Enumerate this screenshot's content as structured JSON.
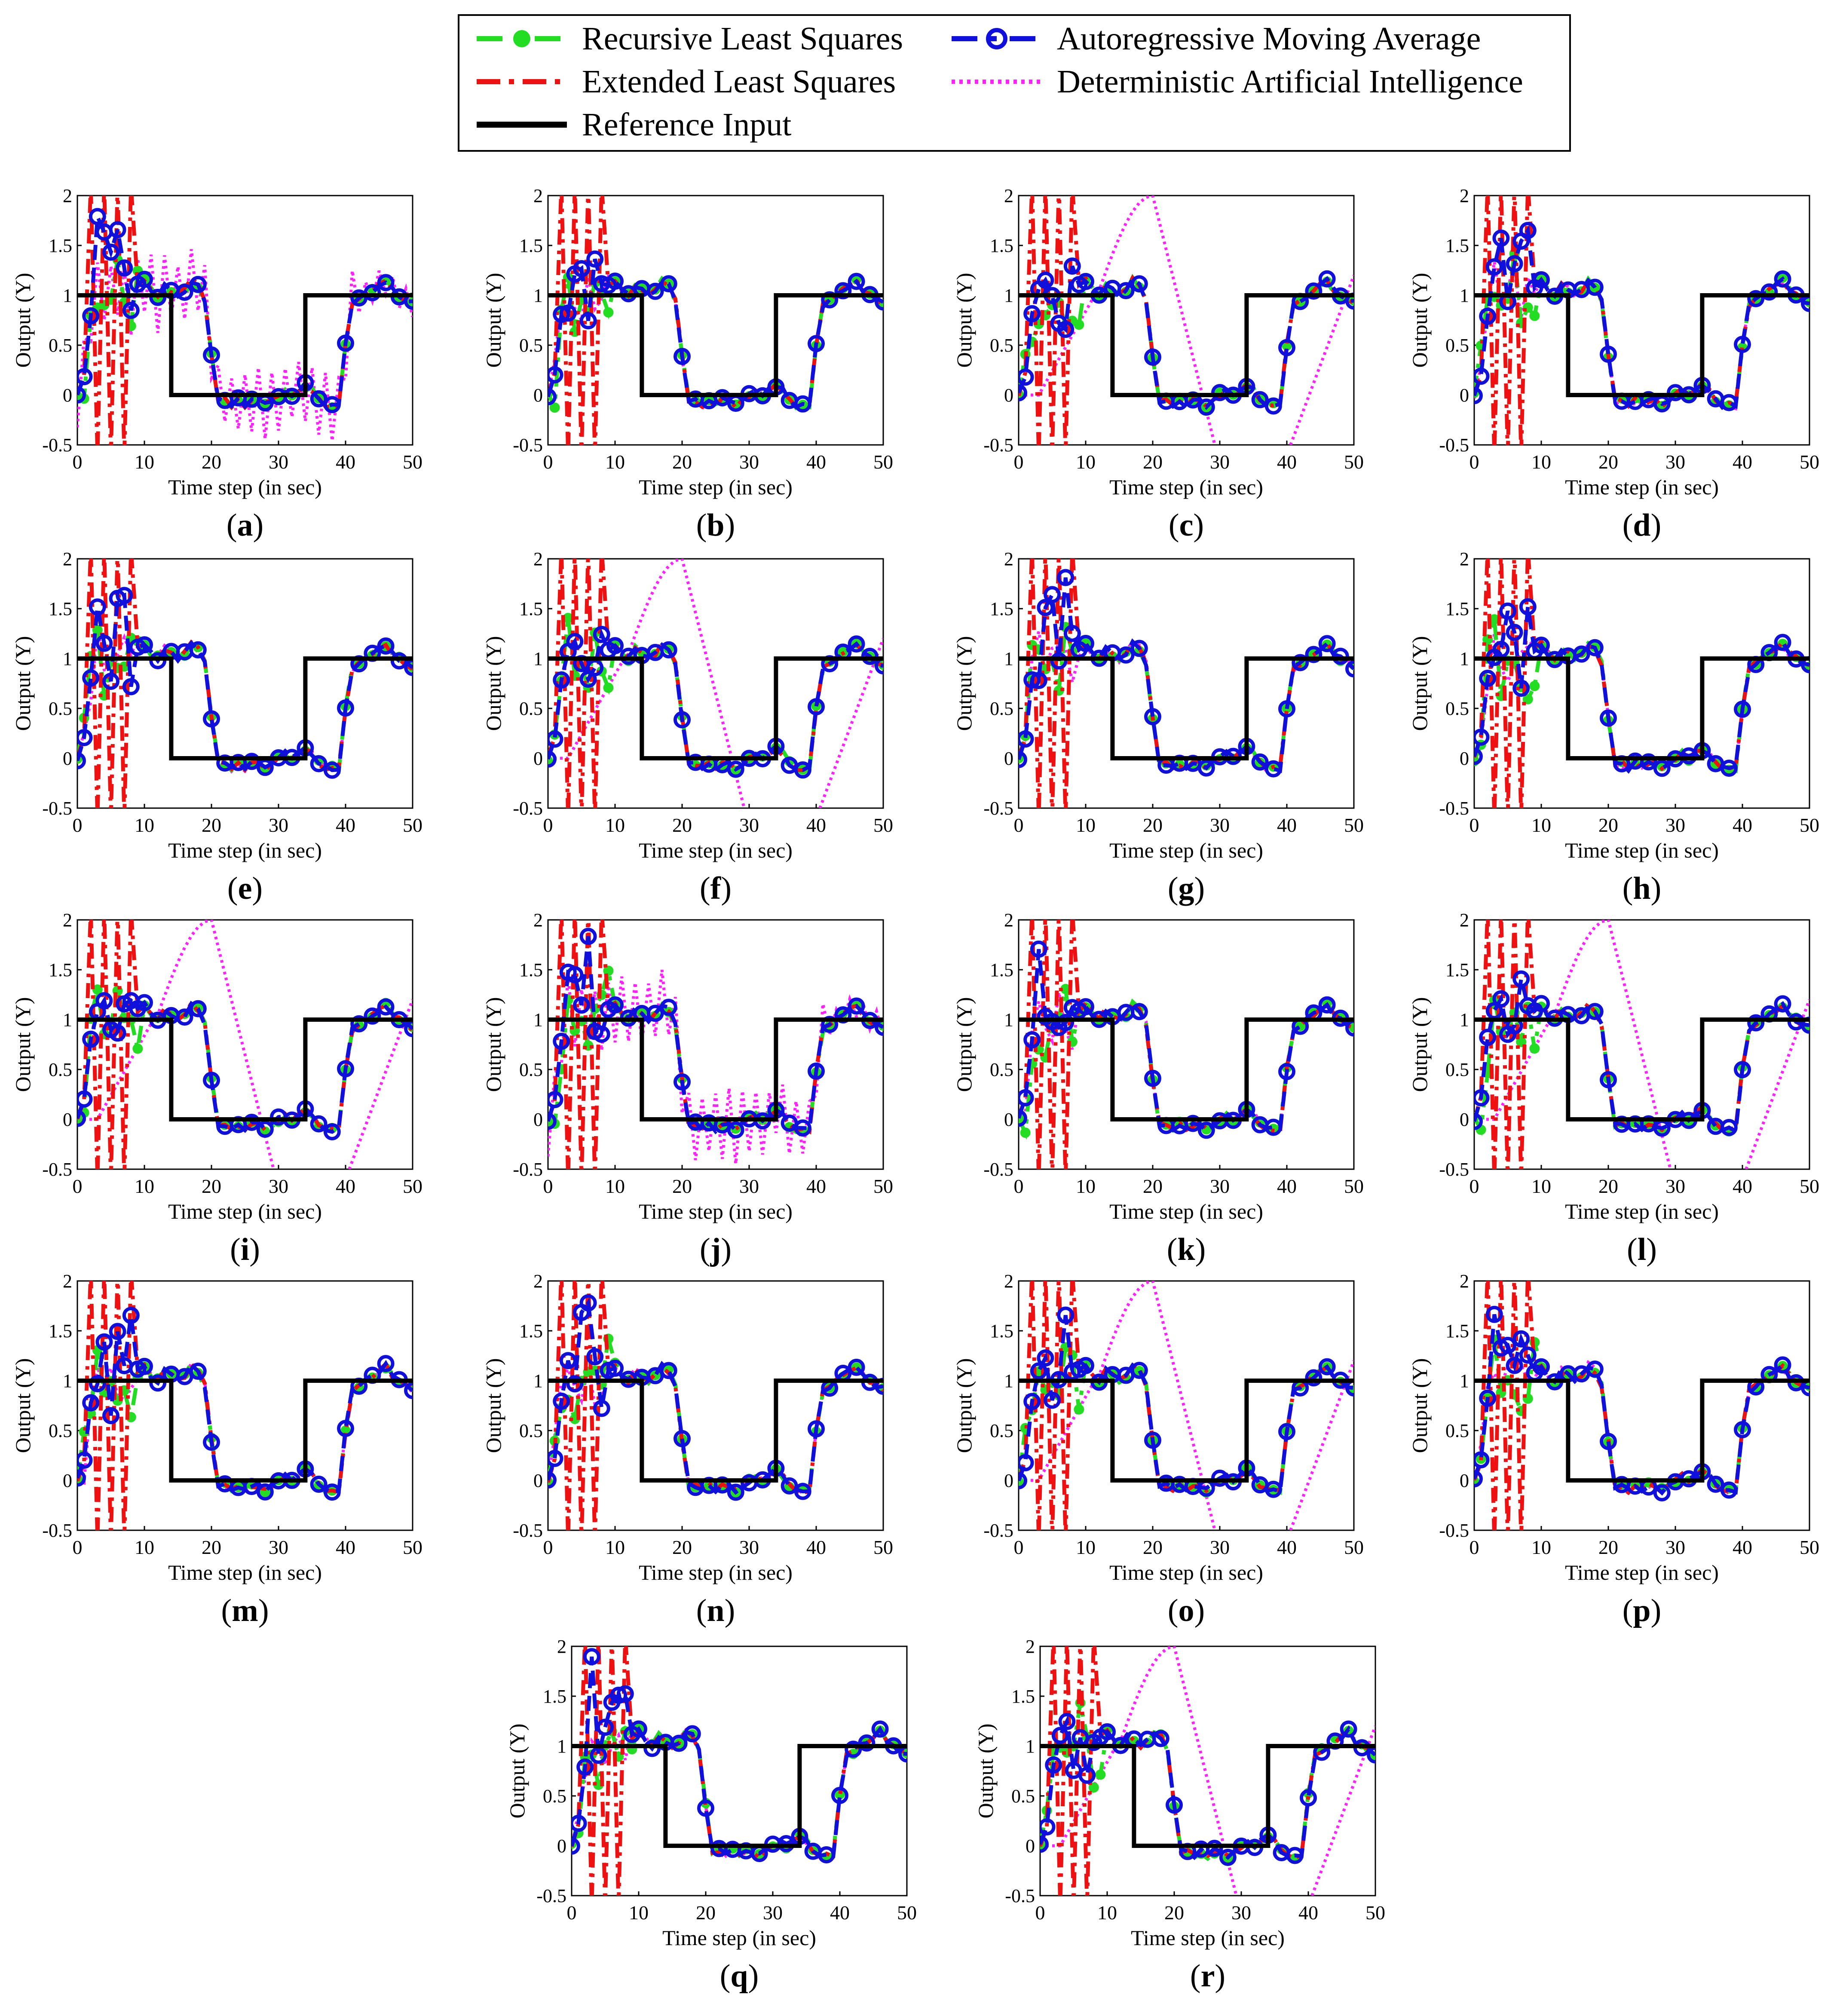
{
  "legend": {
    "rls": "Recursive Least Squares",
    "arma": "Autoregressive Moving Average",
    "els": "Extended Least Squares",
    "dai": "Deterministic Artificial Intelligence",
    "ref": "Reference Input"
  },
  "colors": {
    "rls": "#22dd22",
    "arma": "#1010dd",
    "els": "#ee1111",
    "dai": "#ff22ff",
    "ref": "#000000"
  },
  "axis": {
    "xlabel": "Time step (in sec)",
    "ylabel": "Output (Y)",
    "xticks": [
      "0",
      "10",
      "20",
      "30",
      "40",
      "50"
    ],
    "yticks": [
      "2",
      "1.5",
      "1",
      "0.5",
      "0",
      "-0.5"
    ]
  },
  "chart_data": {
    "type": "line",
    "xlim": [
      0,
      50
    ],
    "ylim": [
      -0.5,
      2
    ],
    "grid": false,
    "legend_placement": "top",
    "reference_input": {
      "x": [
        0,
        14,
        14,
        34,
        34,
        50
      ],
      "y": [
        1,
        1,
        0,
        0,
        1,
        1
      ]
    },
    "panels": [
      {
        "label": "a",
        "dai_variant": "oscillating"
      },
      {
        "label": "b",
        "dai_variant": "tracking"
      },
      {
        "label": "c",
        "dai_variant": "wave"
      },
      {
        "label": "d",
        "dai_variant": "tracking"
      },
      {
        "label": "e",
        "dai_variant": "tracking"
      },
      {
        "label": "f",
        "dai_variant": "wave"
      },
      {
        "label": "g",
        "dai_variant": "tracking"
      },
      {
        "label": "h",
        "dai_variant": "tracking"
      },
      {
        "label": "i",
        "dai_variant": "wave"
      },
      {
        "label": "j",
        "dai_variant": "oscillating"
      },
      {
        "label": "k",
        "dai_variant": "tracking"
      },
      {
        "label": "l",
        "dai_variant": "wave"
      },
      {
        "label": "m",
        "dai_variant": "tracking"
      },
      {
        "label": "n",
        "dai_variant": "tracking"
      },
      {
        "label": "o",
        "dai_variant": "wave"
      },
      {
        "label": "p",
        "dai_variant": "tracking"
      },
      {
        "label": "q",
        "dai_variant": "tracking"
      },
      {
        "label": "r",
        "dai_variant": "wave"
      }
    ],
    "tracking_response": {
      "x": [
        0,
        1,
        2,
        3,
        4,
        5,
        6,
        7,
        8,
        9,
        10,
        11,
        12,
        13,
        14,
        15,
        16,
        17,
        18,
        19,
        20,
        21,
        22,
        23,
        24,
        25,
        26,
        27,
        28,
        29,
        30,
        31,
        32,
        33,
        34,
        35,
        36,
        37,
        38,
        39,
        40,
        41,
        42,
        43,
        44,
        45,
        46,
        47,
        48,
        49,
        50
      ],
      "y": [
        0,
        0.2,
        0.8,
        1.1,
        1.0,
        0.95,
        1.05,
        1.0,
        0.95,
        1.1,
        1.15,
        1.05,
        1.0,
        1.1,
        1.05,
        1.0,
        1.05,
        1.15,
        1.1,
        0.95,
        0.4,
        -0.05,
        -0.05,
        -0.1,
        -0.05,
        -0.1,
        -0.05,
        -0.05,
        -0.1,
        -0.05,
        0.0,
        0.05,
        0.0,
        0.05,
        0.1,
        0.05,
        -0.05,
        -0.1,
        -0.1,
        -0.1,
        0.5,
        0.9,
        0.95,
        1.0,
        1.05,
        1.1,
        1.15,
        1.05,
        1.0,
        0.95,
        0.92
      ]
    }
  }
}
